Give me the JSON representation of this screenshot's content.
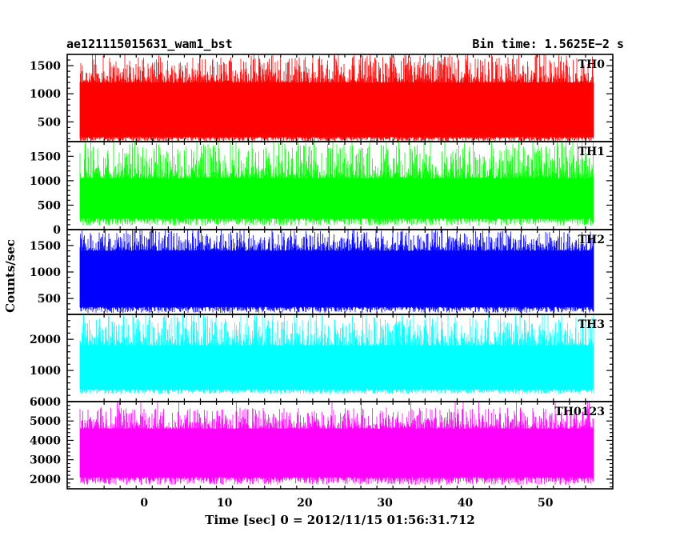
{
  "header": {
    "left": "ae121115015631_wam1_bst",
    "right": "Bin time: 1.5625E−2 s"
  },
  "chart_data": {
    "type": "line",
    "xlabel": "Time [sec] 0 = 2012/11/15 01:56:31.712",
    "ylabel": "Counts/sec",
    "xlim": [
      -9.6,
      58.4
    ],
    "xticks": [
      0,
      10,
      20,
      30,
      40,
      50
    ],
    "data_x_range": [
      -8.0,
      56.0
    ],
    "bin_time_s": 0.015625,
    "panels": [
      {
        "name": "TH0",
        "color": "#ff0000",
        "ylim": [
          150,
          1700
        ],
        "yticks": [
          500,
          1000,
          1500
        ],
        "band": {
          "low": 230,
          "high": 1200,
          "min": 150,
          "max": 1700
        }
      },
      {
        "name": "TH1",
        "color": "#00ff00",
        "ylim": [
          0,
          1800
        ],
        "yticks": [
          0,
          500,
          1000,
          1500
        ],
        "band": {
          "low": 230,
          "high": 1050,
          "min": 80,
          "max": 1800
        }
      },
      {
        "name": "TH2",
        "color": "#0000ff",
        "ylim": [
          200,
          1800
        ],
        "yticks": [
          500,
          1000,
          1500
        ],
        "band": {
          "low": 340,
          "high": 1400,
          "min": 230,
          "max": 1800
        }
      },
      {
        "name": "TH3",
        "color": "#00ffff",
        "ylim": [
          0,
          2800
        ],
        "yticks": [
          1000,
          2000
        ],
        "band": {
          "low": 400,
          "high": 1800,
          "min": 240,
          "max": 2800
        }
      },
      {
        "name": "TH0123",
        "color": "#ff00ff",
        "ylim": [
          1500,
          6000
        ],
        "yticks": [
          2000,
          3000,
          4000,
          5000,
          6000
        ],
        "band": {
          "low": 2100,
          "high": 4600,
          "min": 1700,
          "max": 5700
        }
      }
    ]
  }
}
